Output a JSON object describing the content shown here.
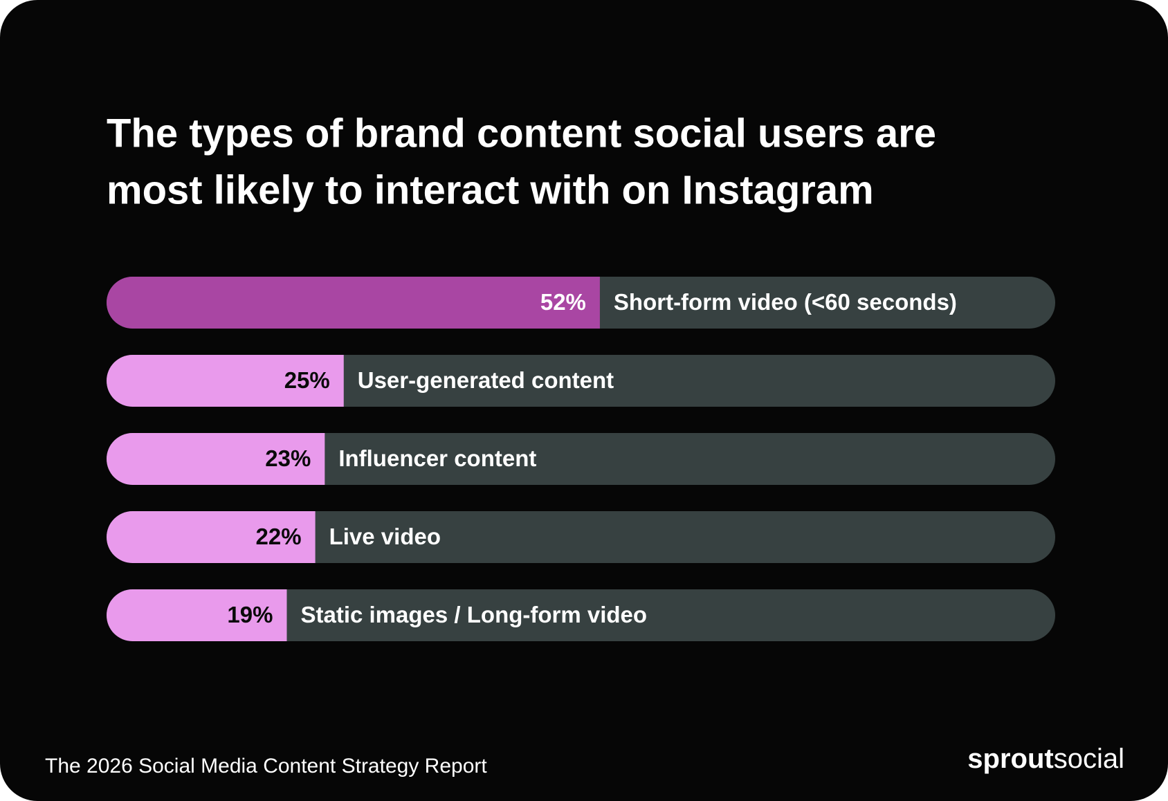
{
  "chart_data": {
    "type": "bar",
    "orientation": "horizontal",
    "title": [
      "The types of brand content social users are",
      "most likely to interact with on Instagram"
    ],
    "categories": [
      "Short-form video (<60 seconds)",
      "User-generated content",
      "Influencer content",
      "Live video",
      "Static images / Long-form video"
    ],
    "values": [
      52,
      25,
      23,
      22,
      19
    ],
    "value_labels": [
      "52%",
      "25%",
      "23%",
      "22%",
      "19%"
    ],
    "colors": [
      "#a946a3",
      "#e99aec",
      "#e99aec",
      "#e99aec",
      "#e99aec"
    ],
    "track_color": "#374141",
    "xlim": [
      0,
      100
    ]
  },
  "footer": {
    "text": "The 2026 Social Media Content Strategy Report",
    "logo": [
      "sprout",
      "social"
    ]
  }
}
